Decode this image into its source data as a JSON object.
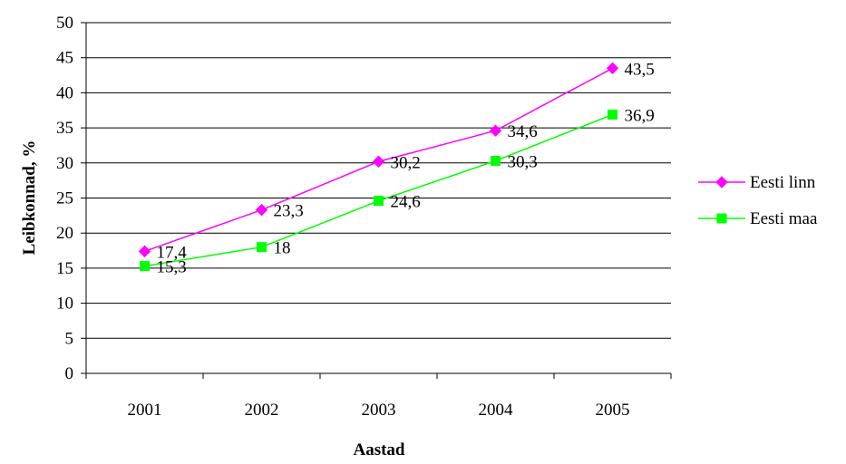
{
  "chart_data": {
    "type": "line",
    "categories": [
      "2001",
      "2002",
      "2003",
      "2004",
      "2005"
    ],
    "series": [
      {
        "name": "Eesti linn",
        "values": [
          17.4,
          23.3,
          30.2,
          34.6,
          43.5
        ],
        "labels": [
          "17,4",
          "23,3",
          "30,2",
          "34,6",
          "43,5"
        ],
        "color": "#FF00FF",
        "marker": "diamond"
      },
      {
        "name": "Eesti maa",
        "values": [
          15.3,
          18,
          24.6,
          30.3,
          36.9
        ],
        "labels": [
          "15,3",
          "18",
          "24,6",
          "30,3",
          "36,9"
        ],
        "color": "#00FF00",
        "marker": "square"
      }
    ],
    "xlabel": "Aastad",
    "ylabel": "Leibkonnad, %",
    "ylim": [
      0,
      50
    ],
    "yticks": [
      "0",
      "5",
      "10",
      "15",
      "20",
      "25",
      "30",
      "35",
      "40",
      "45",
      "50"
    ],
    "grid": true,
    "legend_position": "right"
  }
}
